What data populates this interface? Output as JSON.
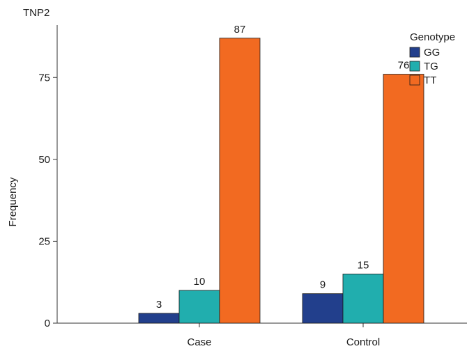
{
  "chart_data": {
    "type": "bar",
    "title": "TNP2",
    "xlabel": "",
    "ylabel": "Frequency",
    "categories": [
      "Case",
      "Control"
    ],
    "series": [
      {
        "name": "GG",
        "values": [
          3,
          9
        ],
        "color": "#223f8c"
      },
      {
        "name": "TG",
        "values": [
          10,
          15
        ],
        "color": "#21aeae"
      },
      {
        "name": "TT",
        "values": [
          87,
          76
        ],
        "color": "#f26a21"
      }
    ],
    "ylim": [
      0,
      91
    ],
    "yticks": [
      0,
      25,
      50,
      75
    ],
    "data_labels": true,
    "legend": {
      "title": "Genotype",
      "position": "top-right"
    },
    "grid": false
  }
}
